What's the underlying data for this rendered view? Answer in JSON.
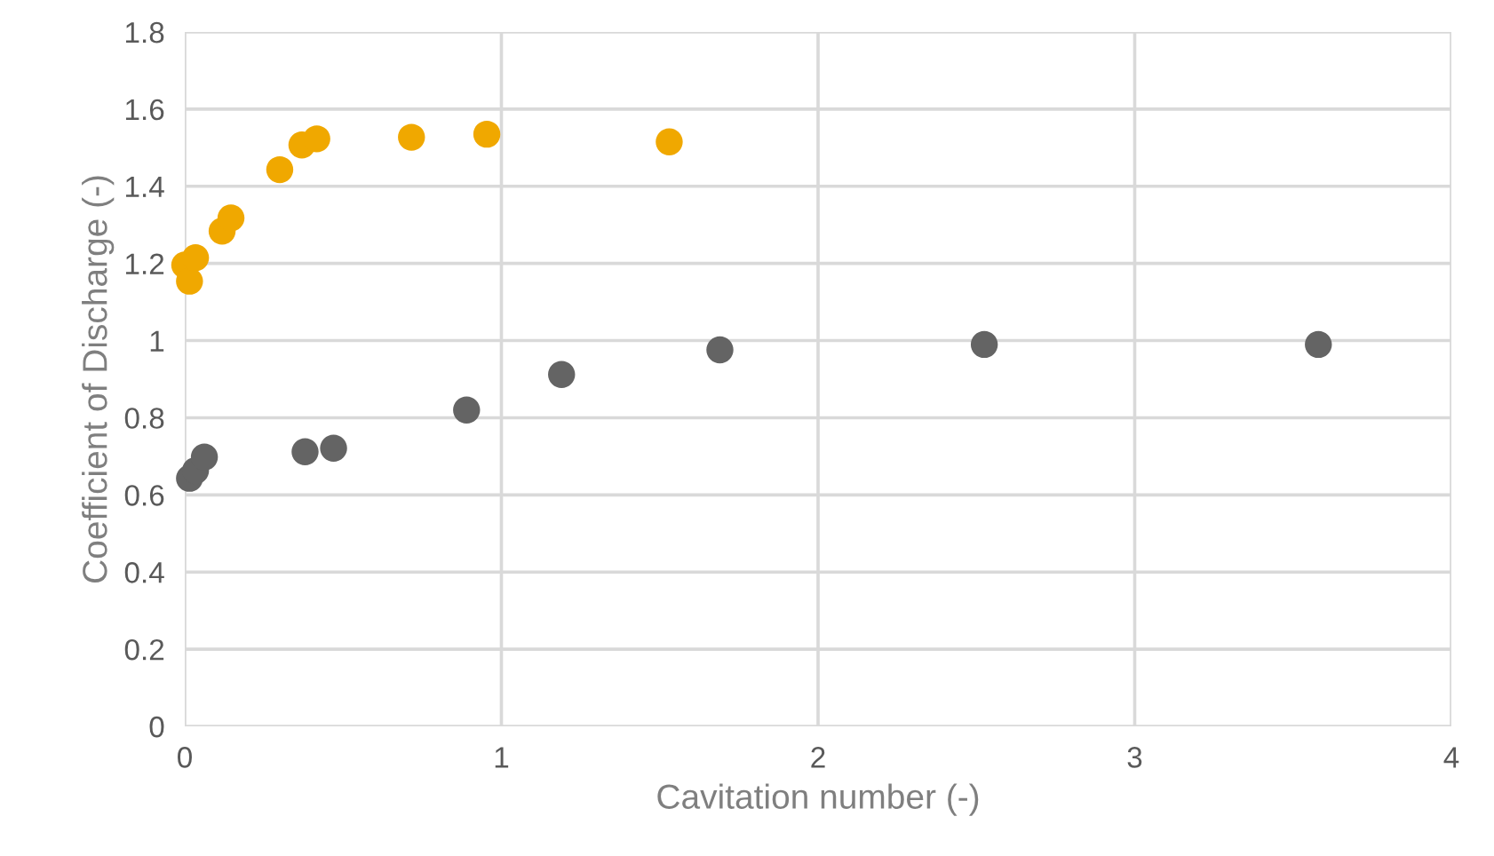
{
  "chart_data": {
    "type": "scatter",
    "xlabel": "Cavitation number (-)",
    "ylabel": "Coefficient of Discharge (-)",
    "xlim": [
      0,
      4
    ],
    "xticks": [
      0,
      1,
      2,
      3,
      4
    ],
    "ylim": [
      0,
      1.8
    ],
    "yticks": [
      0,
      0.2,
      0.4,
      0.6,
      0.8,
      1,
      1.2,
      1.4,
      1.6,
      1.8
    ],
    "grid": true,
    "marker": "circle",
    "series": [
      {
        "color": "#f0a800",
        "x": [
          0.0,
          0.015,
          0.034,
          0.118,
          0.146,
          0.3,
          0.37,
          0.417,
          0.716,
          0.954,
          1.53
        ],
        "values": [
          1.196,
          1.154,
          1.215,
          1.284,
          1.318,
          1.443,
          1.507,
          1.523,
          1.527,
          1.535,
          1.515
        ]
      },
      {
        "color": "#646464",
        "x": [
          0.015,
          0.034,
          0.062,
          0.38,
          0.47,
          0.89,
          1.19,
          1.69,
          2.525,
          3.58
        ],
        "values": [
          0.643,
          0.663,
          0.698,
          0.712,
          0.721,
          0.82,
          0.912,
          0.976,
          0.99,
          0.99
        ]
      }
    ]
  }
}
